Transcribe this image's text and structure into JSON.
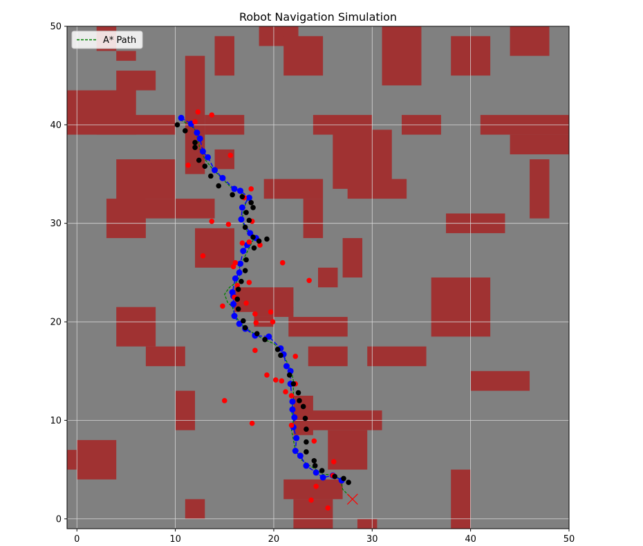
{
  "colors": {
    "background": "#808080",
    "obstacle": "#a03232",
    "astar_path": "#008000",
    "smoothed_path": "#0000ff",
    "robot_positions": "#000000",
    "measurements": "#ff0000",
    "goal": "#ff0000",
    "grid": "#d8d8d8"
  },
  "chart_data": {
    "type": "scatter",
    "title": "Robot Navigation Simulation",
    "xlabel": "",
    "ylabel": "",
    "xlim": [
      -1,
      50
    ],
    "ylim": [
      -1,
      50
    ],
    "xticks": [
      0,
      10,
      20,
      30,
      40,
      50
    ],
    "yticks": [
      0,
      10,
      20,
      30,
      40,
      50
    ],
    "grid": true,
    "legend": {
      "position": "top-left",
      "entries": [
        {
          "label": "A* Path",
          "style": "dashed",
          "color": "#008000"
        }
      ]
    },
    "obstacles": [
      [
        2,
        47.5,
        2,
        2.5
      ],
      [
        4,
        46.5,
        2,
        1
      ],
      [
        4,
        43.5,
        4,
        2
      ],
      [
        2,
        41.5,
        4,
        2
      ],
      [
        -1,
        39,
        7,
        4.5
      ],
      [
        2,
        39,
        8,
        2
      ],
      [
        11,
        35,
        2,
        12
      ],
      [
        13,
        39,
        4,
        2
      ],
      [
        14,
        45,
        2,
        4
      ],
      [
        18.5,
        48,
        4,
        2
      ],
      [
        21,
        45,
        4,
        4
      ],
      [
        31,
        44,
        4,
        6
      ],
      [
        38,
        45,
        4,
        4
      ],
      [
        44,
        47,
        4,
        3
      ],
      [
        24,
        39,
        6,
        2
      ],
      [
        33,
        39,
        4,
        2
      ],
      [
        41,
        39,
        9,
        2
      ],
      [
        44,
        37,
        6,
        2
      ],
      [
        26,
        33.5,
        6,
        6
      ],
      [
        27.5,
        32.5,
        6,
        2
      ],
      [
        14,
        35.5,
        2,
        2
      ],
      [
        4,
        32.5,
        6,
        4
      ],
      [
        4,
        30.5,
        10,
        2
      ],
      [
        3,
        28.5,
        4,
        4
      ],
      [
        19,
        32.5,
        6,
        2
      ],
      [
        23,
        28.5,
        2,
        4
      ],
      [
        37.5,
        29,
        6,
        2
      ],
      [
        46,
        30.5,
        2,
        6
      ],
      [
        12,
        25.5,
        4,
        4
      ],
      [
        27,
        24.5,
        2,
        4
      ],
      [
        24.5,
        23.5,
        2,
        2
      ],
      [
        36,
        18.5,
        6,
        6
      ],
      [
        16,
        21,
        6,
        2.5
      ],
      [
        18,
        20.5,
        4,
        1
      ],
      [
        18,
        19.5,
        2,
        1
      ],
      [
        21.5,
        18.5,
        6,
        2
      ],
      [
        4,
        17.5,
        4,
        4
      ],
      [
        7,
        15.5,
        4,
        2
      ],
      [
        23.5,
        15.5,
        4,
        2
      ],
      [
        29.5,
        15.5,
        6,
        2
      ],
      [
        40,
        13,
        6,
        2
      ],
      [
        10,
        9,
        2,
        4
      ],
      [
        22,
        8.5,
        2,
        4
      ],
      [
        22,
        9,
        9,
        2
      ],
      [
        25.5,
        5,
        4,
        4
      ],
      [
        0,
        4,
        4,
        4
      ],
      [
        -1,
        5,
        1,
        2
      ],
      [
        21,
        2,
        6,
        2
      ],
      [
        22,
        -1,
        4,
        3
      ],
      [
        11,
        0,
        2,
        2
      ],
      [
        38,
        -1,
        2,
        6
      ],
      [
        28.5,
        -1,
        2,
        1
      ]
    ],
    "astar_path": [
      [
        10.5,
        40.5
      ],
      [
        11.5,
        40
      ],
      [
        12,
        39.5
      ],
      [
        12.3,
        38.5
      ],
      [
        12.5,
        37.5
      ],
      [
        13,
        36.5
      ],
      [
        13.8,
        35.5
      ],
      [
        14.8,
        34.5
      ],
      [
        15.8,
        33.5
      ],
      [
        16.5,
        33.2
      ],
      [
        17.3,
        32.5
      ],
      [
        17,
        31.5
      ],
      [
        16.8,
        30.5
      ],
      [
        17,
        29.5
      ],
      [
        17.5,
        29
      ],
      [
        18,
        28.5
      ],
      [
        17.5,
        27.5
      ],
      [
        17,
        26.5
      ],
      [
        16.5,
        25.5
      ],
      [
        16.5,
        24.5
      ],
      [
        16.2,
        24
      ],
      [
        15.5,
        23.5
      ],
      [
        15,
        22.8
      ],
      [
        15.3,
        22
      ],
      [
        15.8,
        21.5
      ],
      [
        16,
        20.8
      ],
      [
        16.5,
        20
      ],
      [
        17,
        19.5
      ],
      [
        18,
        18.8
      ],
      [
        19,
        18.2
      ],
      [
        20,
        17.8
      ],
      [
        20.8,
        17
      ],
      [
        21.3,
        16
      ],
      [
        21.8,
        15
      ],
      [
        22,
        14
      ],
      [
        22,
        13
      ],
      [
        22,
        12
      ],
      [
        21.8,
        11
      ],
      [
        22,
        10
      ],
      [
        21.8,
        9
      ],
      [
        22,
        8
      ],
      [
        22.2,
        7
      ],
      [
        22.8,
        6
      ],
      [
        23.5,
        5.5
      ],
      [
        24.3,
        5
      ],
      [
        25,
        4.5
      ],
      [
        26,
        4.5
      ],
      [
        26.8,
        4
      ],
      [
        27,
        3
      ],
      [
        28,
        2
      ]
    ],
    "smoothed_path": [
      [
        10.6,
        40.7
      ],
      [
        11.6,
        40.1
      ],
      [
        12.2,
        39.2
      ],
      [
        12.5,
        38.6
      ],
      [
        12.8,
        37.3
      ],
      [
        13.3,
        36.7
      ],
      [
        14,
        35.4
      ],
      [
        14.8,
        34.6
      ],
      [
        16,
        33.5
      ],
      [
        16.6,
        33.3
      ],
      [
        17.5,
        32.6
      ],
      [
        16.8,
        31.6
      ],
      [
        16.7,
        30.4
      ],
      [
        17.6,
        29
      ],
      [
        18.2,
        28.5
      ],
      [
        17.3,
        27.8
      ],
      [
        16.9,
        27.2
      ],
      [
        16.6,
        25.9
      ],
      [
        16.5,
        25
      ],
      [
        16.1,
        24.4
      ],
      [
        15.8,
        23
      ],
      [
        15.9,
        22.6
      ],
      [
        15.9,
        21.8
      ],
      [
        16,
        20.6
      ],
      [
        16.5,
        19.8
      ],
      [
        17.1,
        19.3
      ],
      [
        18.1,
        18.6
      ],
      [
        19.5,
        18.5
      ],
      [
        20.7,
        17.3
      ],
      [
        21,
        16.7
      ],
      [
        21.3,
        15.5
      ],
      [
        21.7,
        15
      ],
      [
        21.7,
        13.7
      ],
      [
        21.9,
        11.9
      ],
      [
        21.9,
        11.1
      ],
      [
        22.1,
        10.3
      ],
      [
        22,
        9.3
      ],
      [
        22.3,
        8.2
      ],
      [
        22.2,
        6.9
      ],
      [
        22.7,
        6.4
      ],
      [
        23.3,
        5.4
      ],
      [
        24.3,
        4.7
      ],
      [
        25,
        4.2
      ],
      [
        26,
        4.4
      ],
      [
        26.9,
        3.9
      ]
    ],
    "robot_positions": [
      [
        10.2,
        40
      ],
      [
        11,
        39.4
      ],
      [
        12,
        38.2
      ],
      [
        12,
        37.7
      ],
      [
        12.4,
        36.4
      ],
      [
        13,
        35.8
      ],
      [
        13.6,
        34.8
      ],
      [
        14.4,
        33.8
      ],
      [
        15.8,
        32.9
      ],
      [
        16.8,
        32.7
      ],
      [
        17.7,
        32.1
      ],
      [
        17.9,
        31.6
      ],
      [
        17.2,
        31.1
      ],
      [
        17.5,
        30.3
      ],
      [
        17.1,
        29.6
      ],
      [
        17.9,
        28.6
      ],
      [
        18.5,
        28.2
      ],
      [
        19.3,
        28.4
      ],
      [
        18,
        27.5
      ],
      [
        17.2,
        26.3
      ],
      [
        17.1,
        25.2
      ],
      [
        16.7,
        24.1
      ],
      [
        16.4,
        23.3
      ],
      [
        16.3,
        22.3
      ],
      [
        16.4,
        21.3
      ],
      [
        16.9,
        20.1
      ],
      [
        17.1,
        19.4
      ],
      [
        18.3,
        18.8
      ],
      [
        19.1,
        18.2
      ],
      [
        20.4,
        17.2
      ],
      [
        20.7,
        16.6
      ],
      [
        21.6,
        14.6
      ],
      [
        22,
        13.7
      ],
      [
        22.5,
        12.8
      ],
      [
        22.6,
        12
      ],
      [
        23,
        11.4
      ],
      [
        23.2,
        10.2
      ],
      [
        23.3,
        9.1
      ],
      [
        23.3,
        7.8
      ],
      [
        23.3,
        6.8
      ],
      [
        24.1,
        5.9
      ],
      [
        24.2,
        5.4
      ],
      [
        24.9,
        4.9
      ],
      [
        26.2,
        4.3
      ],
      [
        27.1,
        4.1
      ],
      [
        27.6,
        3.7
      ]
    ],
    "measurements": [
      [
        12.3,
        41.3
      ],
      [
        13.7,
        41
      ],
      [
        12,
        40.3
      ],
      [
        11.3,
        35.9
      ],
      [
        15.6,
        36.9
      ],
      [
        17.7,
        33.5
      ],
      [
        17,
        32.6
      ],
      [
        13.7,
        30.2
      ],
      [
        15.4,
        29.9
      ],
      [
        17.8,
        30.2
      ],
      [
        16.8,
        28
      ],
      [
        17.5,
        28.1
      ],
      [
        18.6,
        27.8
      ],
      [
        12.8,
        26.7
      ],
      [
        15.9,
        25.6
      ],
      [
        16.1,
        26
      ],
      [
        20.9,
        26
      ],
      [
        23.6,
        24.2
      ],
      [
        16.3,
        23.7
      ],
      [
        17.5,
        24
      ],
      [
        16,
        22.5
      ],
      [
        17.2,
        21.9
      ],
      [
        14.8,
        21.6
      ],
      [
        18.1,
        20.8
      ],
      [
        19.7,
        21
      ],
      [
        18.2,
        19.9
      ],
      [
        19.9,
        20
      ],
      [
        18.1,
        17.1
      ],
      [
        22.2,
        16.5
      ],
      [
        19.3,
        14.6
      ],
      [
        20.2,
        14.1
      ],
      [
        20.8,
        14
      ],
      [
        21.2,
        12.9
      ],
      [
        22.2,
        13.7
      ],
      [
        21.8,
        12.5
      ],
      [
        15,
        12
      ],
      [
        17.8,
        9.7
      ],
      [
        21.8,
        9.5
      ],
      [
        24.1,
        7.9
      ],
      [
        26.1,
        5.8
      ],
      [
        24.3,
        3.3
      ],
      [
        26,
        4.4
      ],
      [
        23.8,
        1.9
      ],
      [
        25.5,
        1.1
      ]
    ],
    "goal": [
      28,
      2
    ]
  }
}
